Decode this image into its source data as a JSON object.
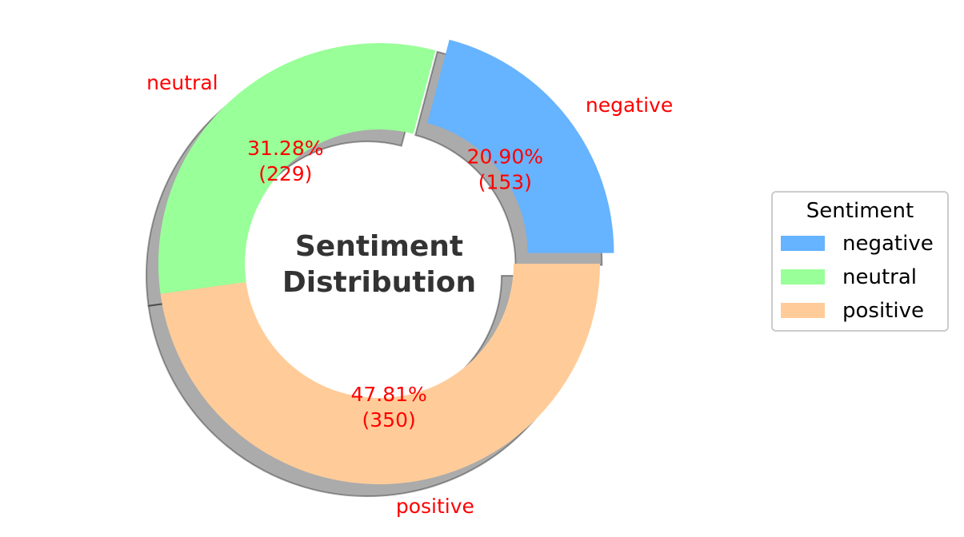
{
  "chart_data": {
    "type": "pie",
    "title": "Sentiment Distribution",
    "legend_title": "Sentiment",
    "legend_position": "right",
    "label_color": "#ff0000",
    "slices": [
      {
        "label": "negative",
        "value": 153,
        "percent_label": "20.90%",
        "count_label": "(153)",
        "color": "#66b3ff",
        "exploded": true
      },
      {
        "label": "neutral",
        "value": 229,
        "percent_label": "31.28%",
        "count_label": "(229)",
        "color": "#99ff99",
        "exploded": false
      },
      {
        "label": "positive",
        "value": 350,
        "percent_label": "47.81%",
        "count_label": "(350)",
        "color": "#ffcc99",
        "exploded": false
      }
    ]
  }
}
